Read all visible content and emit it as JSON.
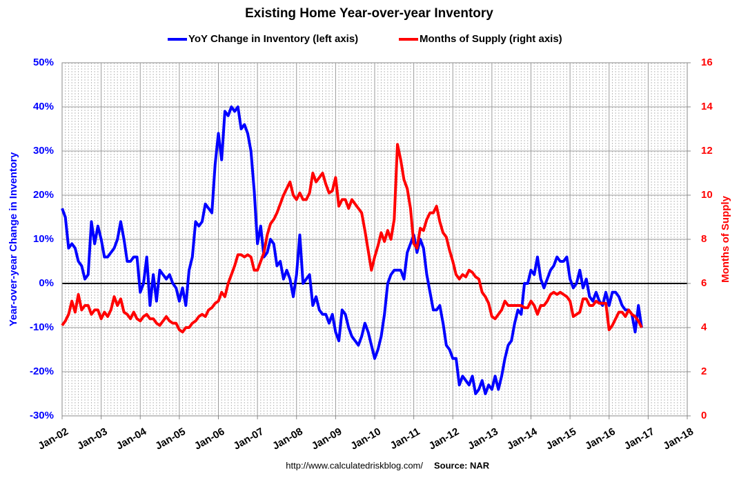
{
  "chart_data": {
    "type": "line",
    "title": "Existing Home Year-over-year Inventory",
    "y_label": "Year-over-year Change in Inventory",
    "y2_label": "Months of Supply",
    "footer": "http://www.calculatedriskblog.com/",
    "source": "Source: NAR",
    "grid": true,
    "legend": "top",
    "categories": [
      "Jan-02",
      null,
      null,
      null,
      null,
      null,
      null,
      null,
      null,
      null,
      null,
      null,
      "Jan-03",
      null,
      null,
      null,
      null,
      null,
      null,
      null,
      null,
      null,
      null,
      null,
      "Jan-04",
      null,
      null,
      null,
      null,
      null,
      null,
      null,
      null,
      null,
      null,
      null,
      "Jan-05",
      null,
      null,
      null,
      null,
      null,
      null,
      null,
      null,
      null,
      null,
      null,
      "Jan-06",
      null,
      null,
      null,
      null,
      null,
      null,
      null,
      null,
      null,
      null,
      null,
      "Jan-07",
      null,
      null,
      null,
      null,
      null,
      null,
      null,
      null,
      null,
      null,
      null,
      "Jan-08",
      null,
      null,
      null,
      null,
      null,
      null,
      null,
      null,
      null,
      null,
      null,
      "Jan-09",
      null,
      null,
      null,
      null,
      null,
      null,
      null,
      null,
      null,
      null,
      null,
      "Jan-10",
      null,
      null,
      null,
      null,
      null,
      null,
      null,
      null,
      null,
      null,
      null,
      "Jan-11",
      null,
      null,
      null,
      null,
      null,
      null,
      null,
      null,
      null,
      null,
      null,
      "Jan-12",
      null,
      null,
      null,
      null,
      null,
      null,
      null,
      null,
      null,
      null,
      null,
      "Jan-13",
      null,
      null,
      null,
      null,
      null,
      null,
      null,
      null,
      null,
      null,
      null,
      "Jan-14",
      null,
      null,
      null,
      null,
      null,
      null,
      null,
      null,
      null,
      null,
      null,
      "Jan-15",
      null,
      null,
      null,
      null,
      null,
      null,
      null,
      null,
      null,
      null,
      null,
      "Jan-16",
      null,
      null,
      null,
      null,
      null,
      null,
      null,
      null,
      null,
      null,
      null,
      "Jan-17",
      null,
      null,
      null,
      null,
      null,
      null,
      null,
      null,
      null,
      null,
      null,
      "Jan-18"
    ],
    "ylim": [
      -30,
      50
    ],
    "yticks": [
      {
        "value": -30,
        "label": "-30%"
      },
      {
        "value": -20,
        "label": "-20%"
      },
      {
        "value": -10,
        "label": "-10%"
      },
      {
        "value": 0,
        "label": "0%"
      },
      {
        "value": 10,
        "label": "10%"
      },
      {
        "value": 20,
        "label": "20%"
      },
      {
        "value": 30,
        "label": "30%"
      },
      {
        "value": 40,
        "label": "40%"
      },
      {
        "value": 50,
        "label": "50%"
      }
    ],
    "y2lim": [
      0,
      16
    ],
    "y2ticks": [
      0,
      2,
      4,
      6,
      8,
      10,
      12,
      14,
      16
    ],
    "series": [
      {
        "name": "YoY Change in Inventory (left axis)",
        "color": "#0000ff",
        "values": [
          17,
          15,
          8,
          9,
          8,
          5,
          4,
          1,
          2,
          14,
          9,
          13,
          10,
          6,
          6,
          7,
          8,
          10,
          14,
          10,
          5,
          5,
          6,
          6,
          -2,
          0,
          6,
          -5,
          2,
          -4,
          3,
          2,
          1,
          2,
          0,
          -1,
          -4,
          -1,
          -5,
          3,
          6,
          14,
          13,
          14,
          18,
          17,
          16,
          27,
          34,
          28,
          39,
          38,
          40,
          39,
          40,
          35,
          36,
          34,
          30,
          21,
          9,
          13,
          6,
          7,
          10,
          9,
          4,
          5,
          1,
          3,
          1,
          -3,
          2,
          11,
          0,
          1,
          2,
          -5,
          -3,
          -6,
          -7,
          -7,
          -9,
          -7,
          -11,
          -13,
          -6,
          -7,
          -10,
          -12,
          -13,
          -14,
          -12,
          -9,
          -11,
          -14,
          -17,
          -15,
          -12,
          -7,
          0,
          2,
          3,
          3,
          3,
          1,
          7,
          9,
          11,
          7,
          10,
          8,
          2,
          -2,
          -6,
          -6,
          -5,
          -9,
          -14,
          -15,
          -17,
          -17,
          -23,
          -21,
          -22,
          -23,
          -21,
          -25,
          -24,
          -22,
          -25,
          -23,
          -24,
          -21,
          -24,
          -21,
          -17,
          -14,
          -13,
          -9,
          -6,
          -7,
          0,
          0,
          3,
          2,
          6,
          1,
          -1,
          1,
          3,
          4,
          6,
          5,
          5,
          6,
          1,
          -1,
          0,
          3,
          -1,
          1,
          -3,
          -4,
          -2,
          -4,
          -5,
          -2,
          -5,
          -2,
          -2,
          -3,
          -5,
          -6,
          -6,
          -7,
          -11,
          -5,
          -10,
          null,
          null,
          null,
          null,
          null,
          null,
          null,
          null,
          null,
          null,
          null,
          null,
          null,
          null
        ]
      },
      {
        "name": "Months of Supply (right axis)",
        "color": "#ff0000",
        "axis": "y2",
        "values": [
          4.1,
          4.3,
          4.6,
          5.2,
          4.7,
          5.5,
          4.8,
          5.0,
          5.0,
          4.6,
          4.8,
          4.8,
          4.4,
          4.7,
          4.5,
          4.8,
          5.4,
          5.0,
          5.3,
          4.7,
          4.6,
          4.4,
          4.7,
          4.4,
          4.3,
          4.5,
          4.6,
          4.4,
          4.4,
          4.2,
          4.1,
          4.3,
          4.5,
          4.3,
          4.2,
          4.2,
          3.9,
          3.8,
          4.0,
          4.0,
          4.2,
          4.3,
          4.5,
          4.6,
          4.5,
          4.8,
          4.9,
          5.1,
          5.2,
          5.6,
          5.4,
          6.0,
          6.4,
          6.8,
          7.3,
          7.3,
          7.2,
          7.3,
          7.2,
          6.6,
          6.6,
          7.0,
          7.4,
          8.2,
          8.7,
          8.9,
          9.2,
          9.6,
          10.0,
          10.3,
          10.6,
          10.0,
          9.8,
          10.1,
          9.8,
          9.8,
          10.1,
          11.0,
          10.6,
          10.8,
          11.0,
          10.5,
          10.1,
          10.2,
          10.8,
          9.5,
          9.8,
          9.8,
          9.4,
          9.8,
          9.6,
          9.4,
          9.2,
          8.4,
          7.5,
          6.6,
          7.2,
          7.7,
          8.3,
          7.9,
          8.4,
          8.0,
          8.9,
          12.3,
          11.6,
          10.7,
          10.3,
          9.4,
          7.8,
          7.6,
          8.5,
          8.4,
          8.9,
          9.2,
          9.2,
          9.5,
          8.8,
          8.3,
          8.1,
          7.5,
          7.0,
          6.4,
          6.2,
          6.4,
          6.3,
          6.6,
          6.5,
          6.3,
          6.2,
          5.6,
          5.4,
          5.1,
          4.5,
          4.4,
          4.6,
          4.8,
          5.2,
          5.0,
          5.0,
          5.0,
          5.0,
          5.0,
          4.9,
          4.9,
          5.2,
          5.0,
          4.6,
          5.0,
          5.0,
          5.2,
          5.5,
          5.6,
          5.5,
          5.6,
          5.5,
          5.4,
          5.2,
          4.5,
          4.6,
          4.7,
          5.3,
          5.3,
          5.0,
          5.0,
          5.2,
          5.1,
          5.1,
          5.1,
          3.9,
          4.1,
          4.4,
          4.7,
          4.7,
          4.5,
          4.8,
          4.6,
          4.5,
          4.3,
          4.0,
          null,
          null,
          null,
          null,
          null,
          null,
          null,
          null,
          null,
          null,
          null,
          null,
          null,
          null
        ]
      }
    ]
  }
}
